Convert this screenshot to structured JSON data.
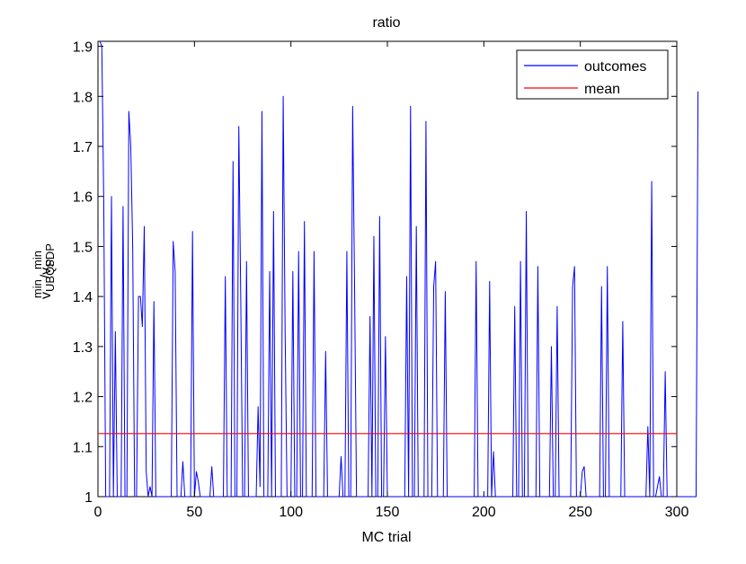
{
  "chart_data": {
    "type": "line",
    "title": "ratio",
    "xlabel": "MC trial",
    "ylabel": {
      "base1": "v",
      "sup1": "min",
      "sub1": "UBQP",
      "slash": "/",
      "base2": "v",
      "sup2": "min",
      "sub2": "SDP"
    },
    "xlim": [
      0,
      300
    ],
    "ylim": [
      1,
      1.91
    ],
    "xticks": [
      0,
      50,
      100,
      150,
      200,
      250,
      300
    ],
    "yticks": [
      1,
      1.1,
      1.2,
      1.3,
      1.4,
      1.5,
      1.6,
      1.7,
      1.8,
      1.9
    ],
    "legend_position": "top-right",
    "grid": false,
    "series": [
      {
        "name": "outcomes",
        "color": "#0000ff",
        "values": [
          1.91,
          1.9,
          1.59,
          1.0,
          1.0,
          1.0,
          1.6,
          1.0,
          1.33,
          1.0,
          1.0,
          1.0,
          1.58,
          1.0,
          1.0,
          1.77,
          1.7,
          1.5,
          1.0,
          1.0,
          1.4,
          1.4,
          1.34,
          1.54,
          1.05,
          1.0,
          1.02,
          1.0,
          1.39,
          1.0,
          1.0,
          1.0,
          1.0,
          1.0,
          1.0,
          1.0,
          1.0,
          1.0,
          1.51,
          1.45,
          1.0,
          1.0,
          1.0,
          1.07,
          1.0,
          1.0,
          1.0,
          1.0,
          1.53,
          1.0,
          1.05,
          1.03,
          1.0,
          1.0,
          1.0,
          1.0,
          1.0,
          1.0,
          1.06,
          1.0,
          1.0,
          1.0,
          1.0,
          1.0,
          1.0,
          1.44,
          1.0,
          1.0,
          1.0,
          1.67,
          1.0,
          1.0,
          1.74,
          1.4,
          1.0,
          1.0,
          1.47,
          1.0,
          1.0,
          1.0,
          1.0,
          1.0,
          1.18,
          1.02,
          1.77,
          1.0,
          1.0,
          1.0,
          1.45,
          1.0,
          1.57,
          1.0,
          1.0,
          1.0,
          1.0,
          1.8,
          1.33,
          1.0,
          1.0,
          1.0,
          1.45,
          1.0,
          1.0,
          1.49,
          1.0,
          1.0,
          1.55,
          1.0,
          1.0,
          1.0,
          1.0,
          1.49,
          1.0,
          1.0,
          1.0,
          1.0,
          1.0,
          1.29,
          1.0,
          1.0,
          1.0,
          1.0,
          1.0,
          1.0,
          1.0,
          1.08,
          1.0,
          1.0,
          1.49,
          1.0,
          1.0,
          1.78,
          1.42,
          1.0,
          1.0,
          1.0,
          1.0,
          1.0,
          1.0,
          1.0,
          1.36,
          1.0,
          1.52,
          1.0,
          1.0,
          1.56,
          1.0,
          1.0,
          1.32,
          1.0,
          1.0,
          1.0,
          1.0,
          1.0,
          1.0,
          1.0,
          1.0,
          1.0,
          1.0,
          1.44,
          1.0,
          1.78,
          1.0,
          1.0,
          1.54,
          1.0,
          1.0,
          1.0,
          1.0,
          1.75,
          1.0,
          1.0,
          1.0,
          1.42,
          1.47,
          1.0,
          1.0,
          1.0,
          1.0,
          1.41,
          1.0,
          1.0,
          1.0,
          1.0,
          1.0,
          1.0,
          1.0,
          1.0,
          1.0,
          1.0,
          1.0,
          1.0,
          1.0,
          1.0,
          1.0,
          1.47,
          1.0,
          1.0,
          1.0,
          1.0,
          1.0,
          1.0,
          1.43,
          1.0,
          1.09,
          1.0,
          1.0,
          1.0,
          1.0,
          1.0,
          1.0,
          1.0,
          1.0,
          1.0,
          1.0,
          1.38,
          1.0,
          1.0,
          1.47,
          1.0,
          1.0,
          1.57,
          1.0,
          1.0,
          1.0,
          1.0,
          1.0,
          1.46,
          1.0,
          1.0,
          1.0,
          1.0,
          1.0,
          1.0,
          1.3,
          1.0,
          1.0,
          1.38,
          1.0,
          1.0,
          1.0,
          1.0,
          1.0,
          1.0,
          1.0,
          1.42,
          1.46,
          1.0,
          1.0,
          1.0,
          1.05,
          1.06,
          1.0,
          1.0,
          1.0,
          1.0,
          1.0,
          1.0,
          1.0,
          1.0,
          1.42,
          1.0,
          1.0,
          1.46,
          1.0,
          1.0,
          1.0,
          1.0,
          1.0,
          1.0,
          1.0,
          1.35,
          1.0,
          1.0,
          1.0,
          1.0,
          1.0,
          1.0,
          1.0,
          1.0,
          1.0,
          1.0,
          1.0,
          1.0,
          1.14,
          1.0,
          1.63,
          1.0,
          1.0,
          1.02,
          1.04,
          1.0,
          1.0,
          1.25,
          1.0,
          1.0,
          1.0,
          1.0,
          1.0,
          1.0,
          1.0,
          1.0,
          1.0,
          1.0,
          1.0,
          1.0,
          1.0,
          1.0,
          1.0,
          1.0,
          1.81
        ]
      },
      {
        "name": "mean",
        "color": "#ff0000",
        "values": [
          1.126,
          1.126
        ]
      }
    ]
  }
}
